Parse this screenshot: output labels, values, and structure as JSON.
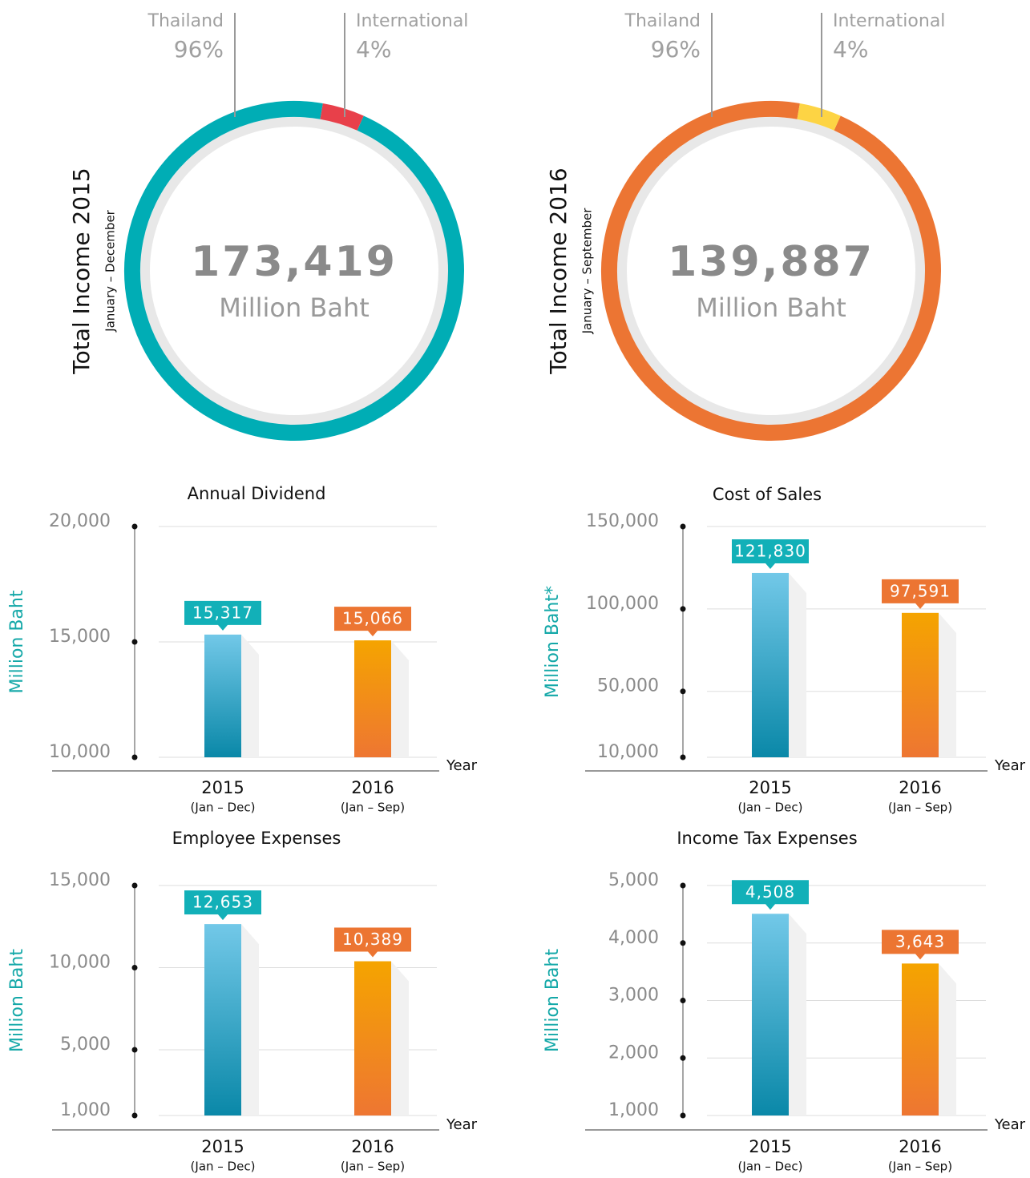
{
  "chart_data": [
    {
      "type": "donut",
      "title": "Total Income 2015",
      "subtitle": "January – December",
      "total": 173419,
      "total_label": "173,419",
      "unit": "Million Baht",
      "categories": [
        "Thailand",
        "International"
      ],
      "values": [
        96,
        4
      ],
      "value_labels": [
        "96%",
        "4%"
      ],
      "colors": [
        "#00adb5",
        "#e8404a"
      ]
    },
    {
      "type": "donut",
      "title": "Total Income 2016",
      "subtitle": "January – September",
      "total": 139887,
      "total_label": "139,887",
      "unit": "Million Baht",
      "categories": [
        "Thailand",
        "International"
      ],
      "values": [
        96,
        4
      ],
      "value_labels": [
        "96%",
        "4%"
      ],
      "colors": [
        "#ec7533",
        "#fdd444"
      ]
    },
    {
      "type": "bar",
      "title": "Annual Dividend",
      "ylabel": "Million Baht",
      "xlabel": "Year",
      "categories": [
        "2015",
        "2016"
      ],
      "category_notes": [
        "(Jan – Dec)",
        "(Jan – Sep)"
      ],
      "values": [
        15317,
        15066
      ],
      "value_labels": [
        "15,317",
        "15,066"
      ],
      "colors": [
        "#1a9bc4",
        "#f39a12"
      ],
      "label_colors": [
        "#12b0b8",
        "#ec7532"
      ],
      "ylim": [
        10000,
        20000
      ],
      "yticks": [
        {
          "value": 10000,
          "label": "10,000"
        },
        {
          "value": 15000,
          "label": "15,000"
        },
        {
          "value": 20000,
          "label": "20,000"
        }
      ],
      "grid": true
    },
    {
      "type": "bar",
      "title": "Cost of Sales",
      "ylabel": "Million Baht*",
      "xlabel": "Year",
      "categories": [
        "2015",
        "2016"
      ],
      "category_notes": [
        "(Jan – Dec)",
        "(Jan – Sep)"
      ],
      "values": [
        121830,
        97591
      ],
      "value_labels": [
        "121,830",
        "97,591"
      ],
      "colors": [
        "#1a9bc4",
        "#f39a12"
      ],
      "label_colors": [
        "#12b0b8",
        "#ec7532"
      ],
      "ylim": [
        10000,
        150000
      ],
      "yticks": [
        {
          "value": 10000,
          "label": "10,000"
        },
        {
          "value": 50000,
          "label": "50,000"
        },
        {
          "value": 100000,
          "label": "100,000"
        },
        {
          "value": 150000,
          "label": "150,000"
        }
      ],
      "grid": true
    },
    {
      "type": "bar",
      "title": "Employee Expenses",
      "ylabel": "Million Baht",
      "xlabel": "Year",
      "categories": [
        "2015",
        "2016"
      ],
      "category_notes": [
        "(Jan – Dec)",
        "(Jan – Sep)"
      ],
      "values": [
        12653,
        10389
      ],
      "value_labels": [
        "12,653",
        "10,389"
      ],
      "colors": [
        "#1a9bc4",
        "#f39a12"
      ],
      "label_colors": [
        "#12b0b8",
        "#ec7532"
      ],
      "ylim": [
        1000,
        15000
      ],
      "yticks": [
        {
          "value": 1000,
          "label": "1,000"
        },
        {
          "value": 5000,
          "label": "5,000"
        },
        {
          "value": 10000,
          "label": "10,000"
        },
        {
          "value": 15000,
          "label": "15,000"
        }
      ],
      "grid": true
    },
    {
      "type": "bar",
      "title": "Income Tax Expenses",
      "ylabel": "Million Baht",
      "xlabel": "Year",
      "categories": [
        "2015",
        "2016"
      ],
      "category_notes": [
        "(Jan – Dec)",
        "(Jan – Sep)"
      ],
      "values": [
        4508,
        3643
      ],
      "value_labels": [
        "4,508",
        "3,643"
      ],
      "colors": [
        "#1a9bc4",
        "#f39a12"
      ],
      "label_colors": [
        "#12b0b8",
        "#ec7532"
      ],
      "ylim": [
        1000,
        5000
      ],
      "yticks": [
        {
          "value": 1000,
          "label": "1,000"
        },
        {
          "value": 2000,
          "label": "2,000"
        },
        {
          "value": 3000,
          "label": "3,000"
        },
        {
          "value": 4000,
          "label": "4,000"
        },
        {
          "value": 5000,
          "label": "5,000"
        }
      ],
      "grid": true
    }
  ]
}
